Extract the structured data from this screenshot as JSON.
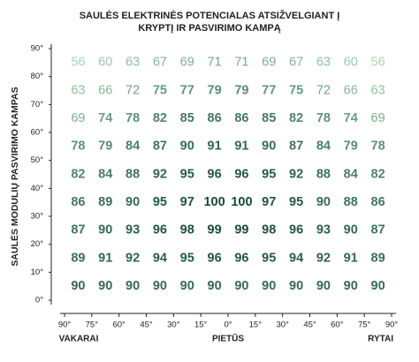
{
  "chart_data": {
    "type": "heatmap",
    "title": [
      "SAULĖS ELEKTRINĖS POTENCIALAS ATSIŽVELGIANT Į",
      "KRYPTĮ IR PASVIRIMO KAMPĄ"
    ],
    "y_label": "SAULĖS MODULIŲ PASVIRIMO KAMPAS",
    "x_edges": [
      "90°",
      "75°",
      "60°",
      "45°",
      "30°",
      "15°",
      "0°",
      "15°",
      "30°",
      "45°",
      "60°",
      "75°",
      "90°"
    ],
    "y_edges": [
      "90°",
      "80°",
      "70°",
      "60°",
      "50°",
      "40°",
      "30°",
      "20°",
      "10°",
      "0°"
    ],
    "x_side_labels": [
      "VAKARAI",
      "PIETŪS",
      "RYTAI"
    ],
    "rows": [
      [
        56,
        60,
        63,
        67,
        69,
        71,
        71,
        69,
        67,
        63,
        60,
        56
      ],
      [
        63,
        66,
        72,
        75,
        77,
        79,
        79,
        77,
        75,
        72,
        66,
        63
      ],
      [
        69,
        74,
        78,
        82,
        85,
        86,
        86,
        85,
        82,
        78,
        74,
        69
      ],
      [
        78,
        79,
        84,
        87,
        90,
        91,
        91,
        90,
        87,
        84,
        79,
        78
      ],
      [
        82,
        84,
        88,
        92,
        95,
        96,
        96,
        95,
        92,
        88,
        84,
        82
      ],
      [
        86,
        89,
        90,
        95,
        97,
        100,
        100,
        97,
        95,
        90,
        88,
        86
      ],
      [
        87,
        90,
        93,
        96,
        98,
        99,
        99,
        98,
        96,
        93,
        90,
        87
      ],
      [
        89,
        91,
        92,
        94,
        95,
        96,
        96,
        95,
        94,
        92,
        91,
        89
      ],
      [
        90,
        90,
        90,
        90,
        90,
        90,
        90,
        90,
        90,
        90,
        90,
        90
      ]
    ],
    "color_low": "#a6d8b0",
    "color_high": "#174a3a",
    "axis_color": "#222222"
  }
}
